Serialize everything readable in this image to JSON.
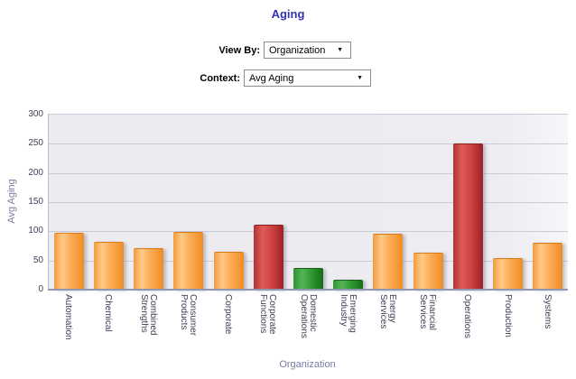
{
  "header": {
    "title": "Aging"
  },
  "controls": {
    "view_by_label": "View By:",
    "view_by_value": "Organization",
    "context_label": "Context:",
    "context_value": "Avg Aging",
    "dropdown_arrow_icon": "▼"
  },
  "chart_data": {
    "type": "bar",
    "title": "Aging",
    "xlabel": "Organization",
    "ylabel": "Avg Aging",
    "ylim": [
      0,
      300
    ],
    "yticks": [
      0,
      50,
      100,
      150,
      200,
      250,
      300
    ],
    "grid": true,
    "legend": "none",
    "categories": [
      "Automation",
      "Chemical",
      "Combined Strengths",
      "Consumer Products",
      "Corporate",
      "Corporate Functions",
      "Domestic Operations",
      "Emerging Industry",
      "Energy Services",
      "Financial Services",
      "Operations",
      "Production",
      "Systems"
    ],
    "values": [
      96,
      81,
      69,
      98,
      63,
      110,
      36,
      15,
      94,
      62,
      249,
      53,
      79
    ],
    "bar_color_keys": [
      "orange",
      "orange",
      "orange",
      "orange",
      "orange",
      "red",
      "green",
      "green",
      "orange",
      "orange",
      "red",
      "orange",
      "orange"
    ],
    "colors": {
      "orange": "#F79A33",
      "red": "#C0392E",
      "green": "#2E9930"
    }
  }
}
